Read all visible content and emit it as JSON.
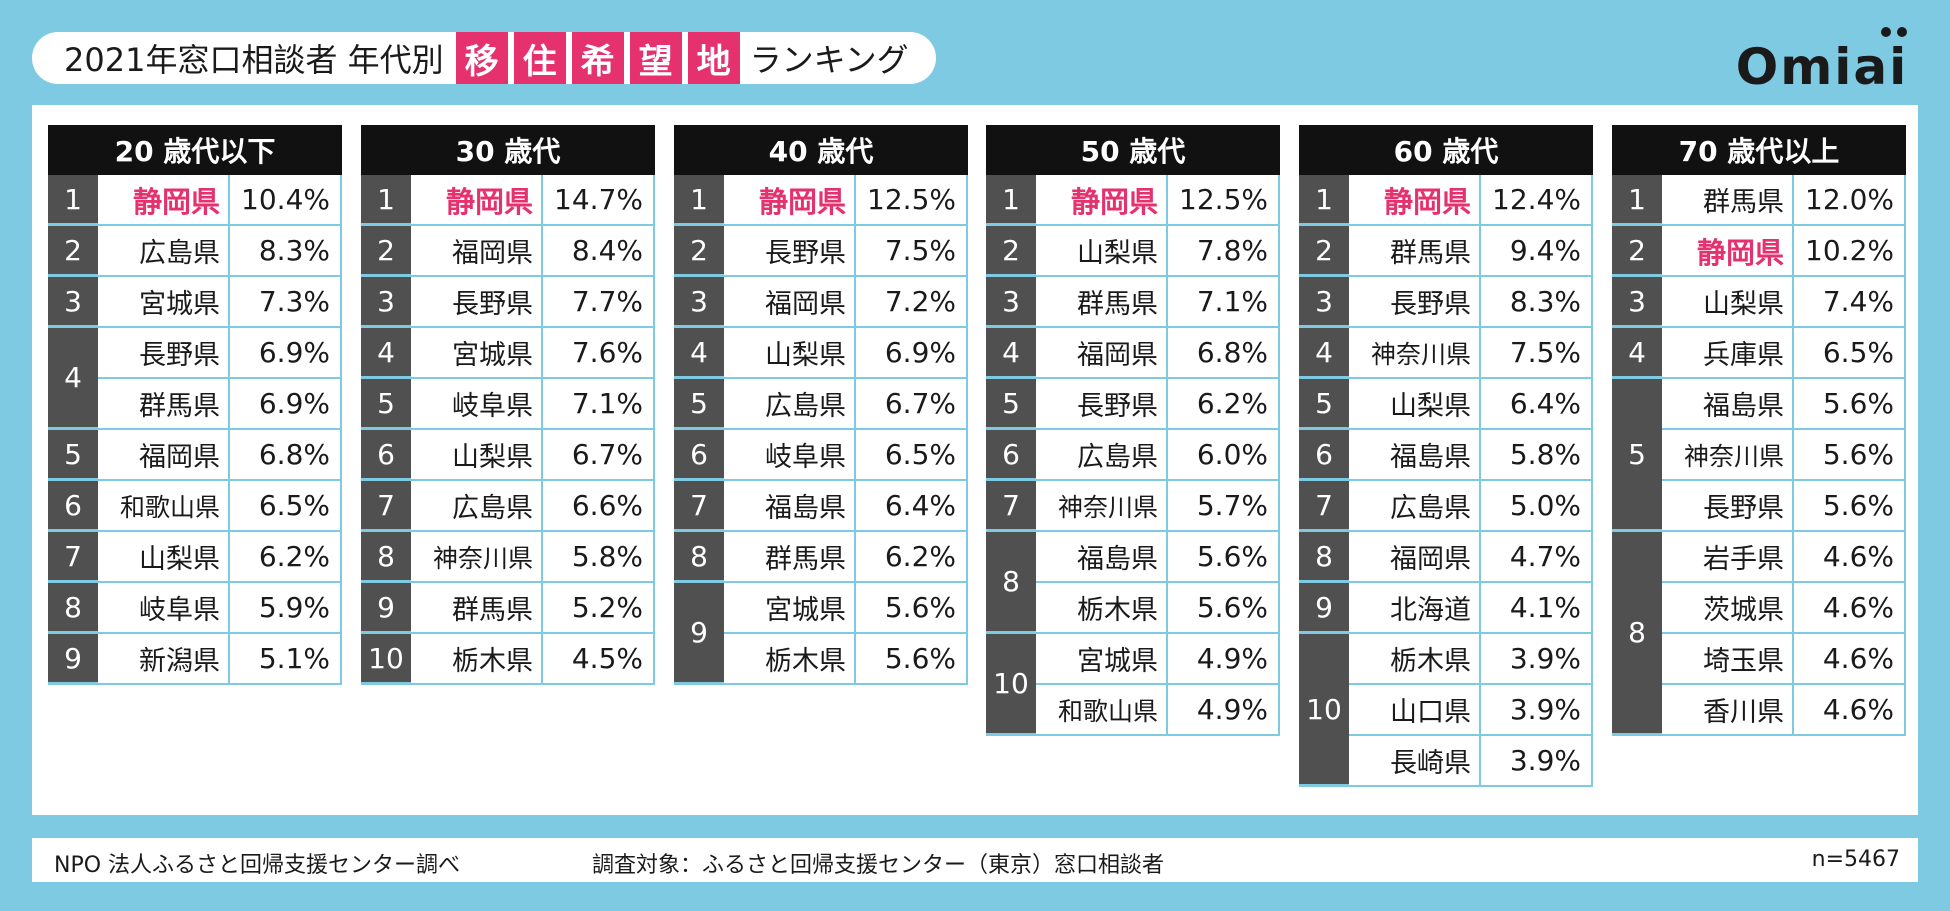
{
  "header": {
    "title_prefix": "2021年窓口相談者 年代別",
    "title_highlight": [
      "移",
      "住",
      "希",
      "望",
      "地"
    ],
    "title_suffix": "ランキング"
  },
  "logo": {
    "text": "Omiai"
  },
  "colors": {
    "pink": "#e5316e",
    "frame": "#7ecae3",
    "rank_bg": "#505050",
    "header_bg": "#111111"
  },
  "tables": [
    {
      "title": "20 歳代以下",
      "rows": [
        {
          "rank": "1",
          "pref": "静岡県",
          "pct": "10.4%",
          "pink": true
        },
        {
          "rank": "2",
          "pref": "広島県",
          "pct": "8.3%"
        },
        {
          "rank": "3",
          "pref": "宮城県",
          "pct": "7.3%"
        },
        {
          "rank": "4",
          "pref": "長野県",
          "pct": "6.9%",
          "span": 2
        },
        {
          "pref": "群馬県",
          "pct": "6.9%"
        },
        {
          "rank": "5",
          "pref": "福岡県",
          "pct": "6.8%"
        },
        {
          "rank": "6",
          "pref": "和歌山県",
          "pct": "6.5%"
        },
        {
          "rank": "7",
          "pref": "山梨県",
          "pct": "6.2%"
        },
        {
          "rank": "8",
          "pref": "岐阜県",
          "pct": "5.9%"
        },
        {
          "rank": "9",
          "pref": "新潟県",
          "pct": "5.1%"
        }
      ]
    },
    {
      "title": "30 歳代",
      "rows": [
        {
          "rank": "1",
          "pref": "静岡県",
          "pct": "14.7%",
          "pink": true
        },
        {
          "rank": "2",
          "pref": "福岡県",
          "pct": "8.4%"
        },
        {
          "rank": "3",
          "pref": "長野県",
          "pct": "7.7%"
        },
        {
          "rank": "4",
          "pref": "宮城県",
          "pct": "7.6%"
        },
        {
          "rank": "5",
          "pref": "岐阜県",
          "pct": "7.1%"
        },
        {
          "rank": "6",
          "pref": "山梨県",
          "pct": "6.7%"
        },
        {
          "rank": "7",
          "pref": "広島県",
          "pct": "6.6%"
        },
        {
          "rank": "8",
          "pref": "神奈川県",
          "pct": "5.8%"
        },
        {
          "rank": "9",
          "pref": "群馬県",
          "pct": "5.2%"
        },
        {
          "rank": "10",
          "pref": "栃木県",
          "pct": "4.5%"
        }
      ]
    },
    {
      "title": "40 歳代",
      "rows": [
        {
          "rank": "1",
          "pref": "静岡県",
          "pct": "12.5%",
          "pink": true
        },
        {
          "rank": "2",
          "pref": "長野県",
          "pct": "7.5%"
        },
        {
          "rank": "3",
          "pref": "福岡県",
          "pct": "7.2%"
        },
        {
          "rank": "4",
          "pref": "山梨県",
          "pct": "6.9%"
        },
        {
          "rank": "5",
          "pref": "広島県",
          "pct": "6.7%"
        },
        {
          "rank": "6",
          "pref": "岐阜県",
          "pct": "6.5%"
        },
        {
          "rank": "7",
          "pref": "福島県",
          "pct": "6.4%"
        },
        {
          "rank": "8",
          "pref": "群馬県",
          "pct": "6.2%"
        },
        {
          "rank": "9",
          "pref": "宮城県",
          "pct": "5.6%",
          "span": 2
        },
        {
          "pref": "栃木県",
          "pct": "5.6%"
        }
      ]
    },
    {
      "title": "50 歳代",
      "rows": [
        {
          "rank": "1",
          "pref": "静岡県",
          "pct": "12.5%",
          "pink": true
        },
        {
          "rank": "2",
          "pref": "山梨県",
          "pct": "7.8%"
        },
        {
          "rank": "3",
          "pref": "群馬県",
          "pct": "7.1%"
        },
        {
          "rank": "4",
          "pref": "福岡県",
          "pct": "6.8%"
        },
        {
          "rank": "5",
          "pref": "長野県",
          "pct": "6.2%"
        },
        {
          "rank": "6",
          "pref": "広島県",
          "pct": "6.0%"
        },
        {
          "rank": "7",
          "pref": "神奈川県",
          "pct": "5.7%"
        },
        {
          "rank": "8",
          "pref": "福島県",
          "pct": "5.6%",
          "span": 2
        },
        {
          "pref": "栃木県",
          "pct": "5.6%"
        },
        {
          "rank": "10",
          "pref": "宮城県",
          "pct": "4.9%",
          "span": 2
        },
        {
          "pref": "和歌山県",
          "pct": "4.9%"
        }
      ]
    },
    {
      "title": "60 歳代",
      "rows": [
        {
          "rank": "1",
          "pref": "静岡県",
          "pct": "12.4%",
          "pink": true
        },
        {
          "rank": "2",
          "pref": "群馬県",
          "pct": "9.4%"
        },
        {
          "rank": "3",
          "pref": "長野県",
          "pct": "8.3%"
        },
        {
          "rank": "4",
          "pref": "神奈川県",
          "pct": "7.5%"
        },
        {
          "rank": "5",
          "pref": "山梨県",
          "pct": "6.4%"
        },
        {
          "rank": "6",
          "pref": "福島県",
          "pct": "5.8%"
        },
        {
          "rank": "7",
          "pref": "広島県",
          "pct": "5.0%"
        },
        {
          "rank": "8",
          "pref": "福岡県",
          "pct": "4.7%"
        },
        {
          "rank": "9",
          "pref": "北海道",
          "pct": "4.1%"
        },
        {
          "rank": "10",
          "pref": "栃木県",
          "pct": "3.9%",
          "span": 3
        },
        {
          "pref": "山口県",
          "pct": "3.9%"
        },
        {
          "pref": "長崎県",
          "pct": "3.9%"
        }
      ]
    },
    {
      "title": "70 歳代以上",
      "rows": [
        {
          "rank": "1",
          "pref": "群馬県",
          "pct": "12.0%"
        },
        {
          "rank": "2",
          "pref": "静岡県",
          "pct": "10.2%",
          "pink": true
        },
        {
          "rank": "3",
          "pref": "山梨県",
          "pct": "7.4%"
        },
        {
          "rank": "4",
          "pref": "兵庫県",
          "pct": "6.5%"
        },
        {
          "rank": "5",
          "pref": "福島県",
          "pct": "5.6%",
          "span": 3
        },
        {
          "pref": "神奈川県",
          "pct": "5.6%"
        },
        {
          "pref": "長野県",
          "pct": "5.6%"
        },
        {
          "rank": "8",
          "pref": "岩手県",
          "pct": "4.6%",
          "span": 4
        },
        {
          "pref": "茨城県",
          "pct": "4.6%"
        },
        {
          "pref": "埼玉県",
          "pct": "4.6%"
        },
        {
          "pref": "香川県",
          "pct": "4.6%"
        }
      ]
    }
  ],
  "footer": {
    "source": "NPO 法人ふるさと回帰支援センター調べ",
    "target": "調査対象：ふるさと回帰支援センター（東京）窓口相談者",
    "sample": "n=5467"
  }
}
